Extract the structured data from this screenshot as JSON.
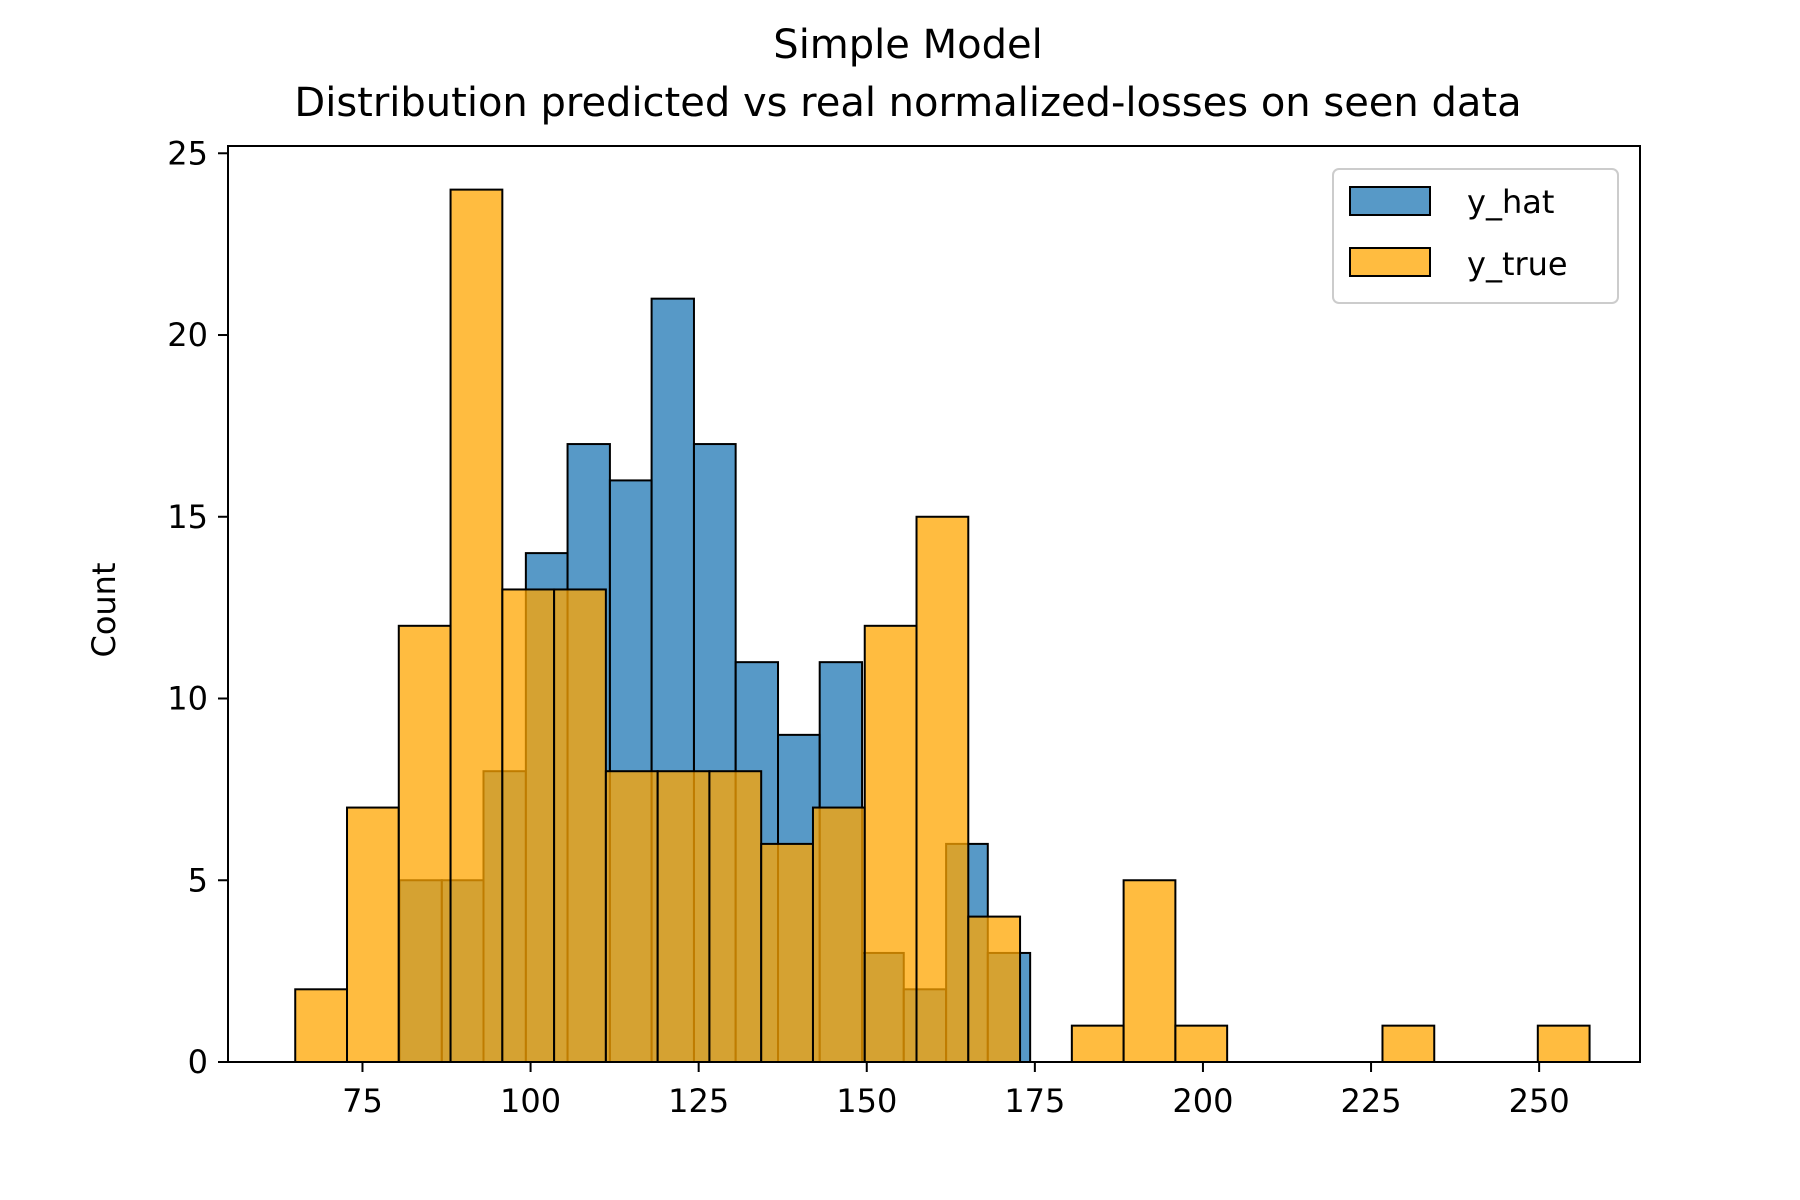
{
  "chart_data": {
    "type": "bar",
    "title_line1": "Simple Model",
    "title_line2": "Distribution predicted vs real normalized-losses on seen data",
    "xlabel": "",
    "ylabel": "Count",
    "xlim": [
      55,
      265
    ],
    "ylim": [
      0,
      25.2
    ],
    "x_ticks": [
      75,
      100,
      125,
      150,
      175,
      200,
      225,
      250
    ],
    "y_ticks": [
      0,
      5,
      10,
      15,
      20,
      25
    ],
    "grid": false,
    "legend_position": "top-right",
    "series": [
      {
        "name": "y_hat",
        "color": "#1f77b4",
        "bins": [
          {
            "x0": 80.5,
            "x1": 86.8,
            "count": 5
          },
          {
            "x0": 86.8,
            "x1": 93.0,
            "count": 5
          },
          {
            "x0": 93.0,
            "x1": 99.3,
            "count": 8
          },
          {
            "x0": 99.3,
            "x1": 105.5,
            "count": 14
          },
          {
            "x0": 105.5,
            "x1": 111.8,
            "count": 17
          },
          {
            "x0": 111.8,
            "x1": 118.0,
            "count": 16
          },
          {
            "x0": 118.0,
            "x1": 124.3,
            "count": 21
          },
          {
            "x0": 124.3,
            "x1": 130.5,
            "count": 17
          },
          {
            "x0": 130.5,
            "x1": 136.8,
            "count": 11
          },
          {
            "x0": 136.8,
            "x1": 143.0,
            "count": 9
          },
          {
            "x0": 143.0,
            "x1": 149.3,
            "count": 11
          },
          {
            "x0": 149.3,
            "x1": 155.5,
            "count": 3
          },
          {
            "x0": 155.5,
            "x1": 161.8,
            "count": 2
          },
          {
            "x0": 161.8,
            "x1": 168.0,
            "count": 6
          },
          {
            "x0": 168.0,
            "x1": 174.3,
            "count": 3
          }
        ]
      },
      {
        "name": "y_true",
        "color": "#ffa500",
        "bins": [
          {
            "x0": 65.0,
            "x1": 72.7,
            "count": 2
          },
          {
            "x0": 72.7,
            "x1": 80.4,
            "count": 7
          },
          {
            "x0": 80.4,
            "x1": 88.1,
            "count": 12
          },
          {
            "x0": 88.1,
            "x1": 95.8,
            "count": 24
          },
          {
            "x0": 95.8,
            "x1": 103.5,
            "count": 13
          },
          {
            "x0": 103.5,
            "x1": 111.2,
            "count": 13
          },
          {
            "x0": 111.2,
            "x1": 118.9,
            "count": 8
          },
          {
            "x0": 118.9,
            "x1": 126.6,
            "count": 8
          },
          {
            "x0": 126.6,
            "x1": 134.3,
            "count": 8
          },
          {
            "x0": 134.3,
            "x1": 142.0,
            "count": 6
          },
          {
            "x0": 142.0,
            "x1": 149.7,
            "count": 7
          },
          {
            "x0": 149.7,
            "x1": 157.4,
            "count": 12
          },
          {
            "x0": 157.4,
            "x1": 165.1,
            "count": 15
          },
          {
            "x0": 165.1,
            "x1": 172.8,
            "count": 4
          },
          {
            "x0": 172.8,
            "x1": 180.5,
            "count": 0
          },
          {
            "x0": 180.5,
            "x1": 188.2,
            "count": 1
          },
          {
            "x0": 188.2,
            "x1": 195.9,
            "count": 5
          },
          {
            "x0": 195.9,
            "x1": 203.6,
            "count": 1
          },
          {
            "x0": 203.6,
            "x1": 211.3,
            "count": 0
          },
          {
            "x0": 211.3,
            "x1": 219.0,
            "count": 0
          },
          {
            "x0": 219.0,
            "x1": 226.7,
            "count": 0
          },
          {
            "x0": 226.7,
            "x1": 234.4,
            "count": 1
          },
          {
            "x0": 234.4,
            "x1": 242.1,
            "count": 0
          },
          {
            "x0": 242.1,
            "x1": 249.8,
            "count": 0
          },
          {
            "x0": 249.8,
            "x1": 257.5,
            "count": 1
          }
        ]
      }
    ]
  }
}
